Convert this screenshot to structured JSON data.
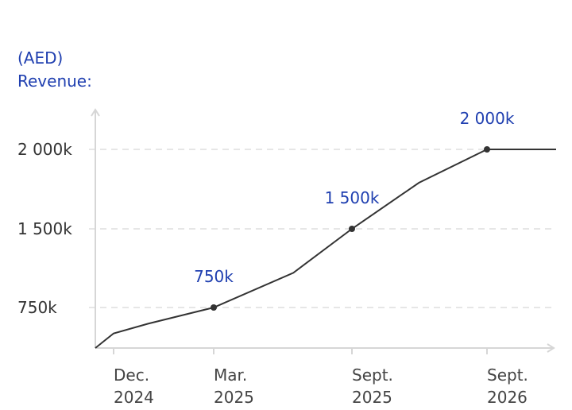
{
  "chart_data": {
    "type": "line",
    "ylabel_lines": [
      "(AED)",
      "Revenue:"
    ],
    "y_ticks": [
      {
        "value": 750,
        "label": "750k"
      },
      {
        "value": 1500,
        "label": "1 500k"
      },
      {
        "value": 2000,
        "label": "2 000k"
      }
    ],
    "x_ticks": [
      {
        "x": "2024-12",
        "lines": [
          "Dec.",
          "2024"
        ]
      },
      {
        "x": "2025-03",
        "lines": [
          "Mar.",
          "2025"
        ]
      },
      {
        "x": "2025-09",
        "lines": [
          "Sept.",
          "2025"
        ]
      },
      {
        "x": "2026-09",
        "lines": [
          "Sept.",
          "2026"
        ]
      }
    ],
    "series": [
      {
        "points": [
          {
            "x": "2024-11-15",
            "y": 500
          },
          {
            "x": "2024-12-01",
            "y": 590
          },
          {
            "x": "2025-01-01",
            "y": 650
          },
          {
            "x": "2025-03-01",
            "y": 750,
            "marker": true,
            "label": "750k"
          },
          {
            "x": "2025-06-15",
            "y": 1080
          },
          {
            "x": "2025-09-01",
            "y": 1500,
            "marker": true,
            "label": "1 500k"
          },
          {
            "x": "2026-03-01",
            "y": 1790
          },
          {
            "x": "2026-09-01",
            "y": 2000,
            "marker": true,
            "label": "2 000k"
          },
          {
            "x": "2027-02-15",
            "y": 2000
          }
        ]
      }
    ],
    "grid": true
  }
}
